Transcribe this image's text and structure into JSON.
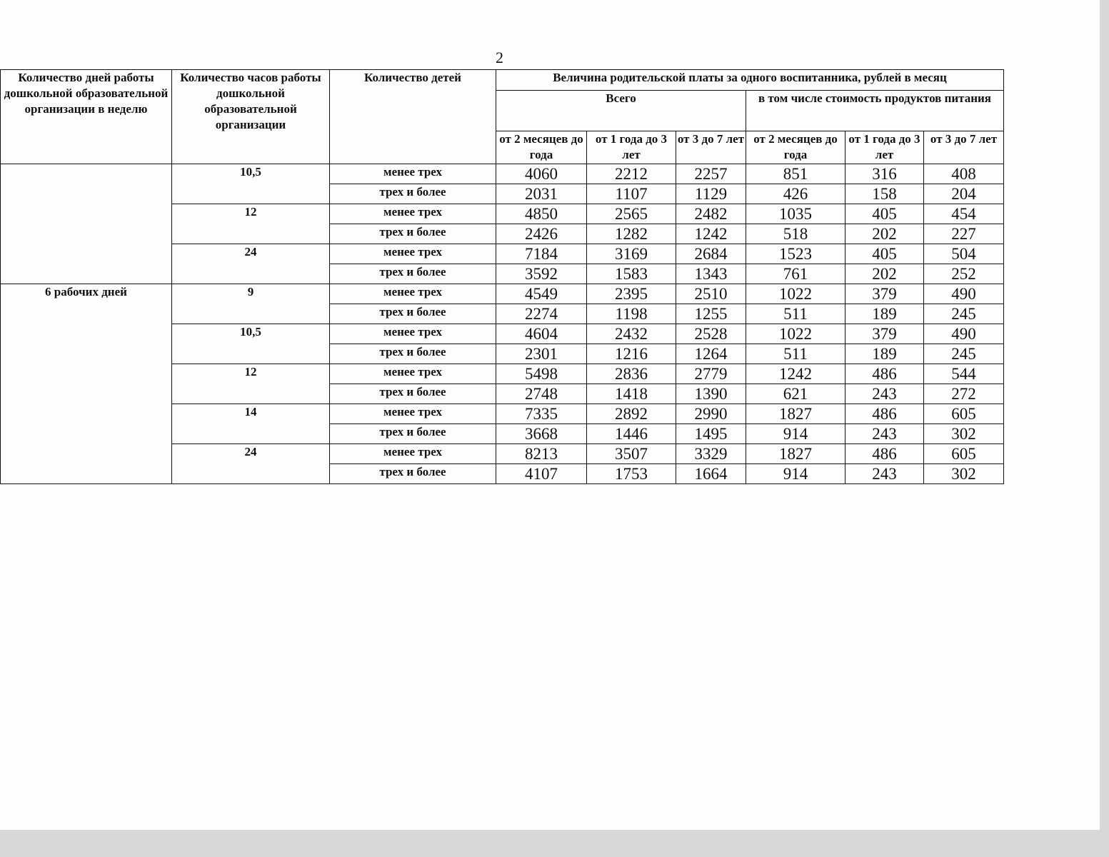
{
  "page_number": "2",
  "headers": {
    "days": "Количество дней работы дошкольной образовательной организации в неделю",
    "hours": "Количество часов работы дошкольной образовательной организации",
    "children": "Количество детей",
    "fee": "Величина родительской платы за одного воспитанника, рублей в месяц",
    "total": "Всего",
    "food": "в том числе стоимость продуктов питания",
    "age_cols": [
      "от 2 месяцев до года",
      "от 1 года до 3 лет",
      "от 3 до 7 лет",
      "от 2 месяцев до года",
      "от 1 года до 3 лет",
      "от 3 до 7 лет"
    ]
  },
  "groups": [
    {
      "days": "",
      "hours_blocks": [
        {
          "hours": "10,5",
          "rows": [
            {
              "children": "менее трех",
              "values": [
                "4060",
                "2212",
                "2257",
                "851",
                "316",
                "408"
              ]
            },
            {
              "children": "трех и более",
              "values": [
                "2031",
                "1107",
                "1129",
                "426",
                "158",
                "204"
              ]
            }
          ]
        },
        {
          "hours": "12",
          "rows": [
            {
              "children": "менее трех",
              "values": [
                "4850",
                "2565",
                "2482",
                "1035",
                "405",
                "454"
              ]
            },
            {
              "children": "трех и более",
              "values": [
                "2426",
                "1282",
                "1242",
                "518",
                "202",
                "227"
              ]
            }
          ]
        },
        {
          "hours": "24",
          "rows": [
            {
              "children": "менее трех",
              "values": [
                "7184",
                "3169",
                "2684",
                "1523",
                "405",
                "504"
              ]
            },
            {
              "children": "трех и более",
              "values": [
                "3592",
                "1583",
                "1343",
                "761",
                "202",
                "252"
              ]
            }
          ]
        }
      ]
    },
    {
      "days": "6 рабочих дней",
      "hours_blocks": [
        {
          "hours": "9",
          "rows": [
            {
              "children": "менее трех",
              "values": [
                "4549",
                "2395",
                "2510",
                "1022",
                "379",
                "490"
              ]
            },
            {
              "children": "трех и более",
              "values": [
                "2274",
                "1198",
                "1255",
                "511",
                "189",
                "245"
              ]
            }
          ]
        },
        {
          "hours": "10,5",
          "rows": [
            {
              "children": "менее трех",
              "values": [
                "4604",
                "2432",
                "2528",
                "1022",
                "379",
                "490"
              ]
            },
            {
              "children": "трех и более",
              "values": [
                "2301",
                "1216",
                "1264",
                "511",
                "189",
                "245"
              ]
            }
          ]
        },
        {
          "hours": "12",
          "rows": [
            {
              "children": "менее трех",
              "values": [
                "5498",
                "2836",
                "2779",
                "1242",
                "486",
                "544"
              ]
            },
            {
              "children": "трех и более",
              "values": [
                "2748",
                "1418",
                "1390",
                "621",
                "243",
                "272"
              ]
            }
          ]
        },
        {
          "hours": "14",
          "rows": [
            {
              "children": "менее трех",
              "values": [
                "7335",
                "2892",
                "2990",
                "1827",
                "486",
                "605"
              ]
            },
            {
              "children": "трех и более",
              "values": [
                "3668",
                "1446",
                "1495",
                "914",
                "243",
                "302"
              ]
            }
          ]
        },
        {
          "hours": "24",
          "rows": [
            {
              "children": "менее трех",
              "values": [
                "8213",
                "3507",
                "3329",
                "1827",
                "486",
                "605"
              ]
            },
            {
              "children": "трех и более",
              "values": [
                "4107",
                "1753",
                "1664",
                "914",
                "243",
                "302"
              ]
            }
          ]
        }
      ]
    }
  ]
}
